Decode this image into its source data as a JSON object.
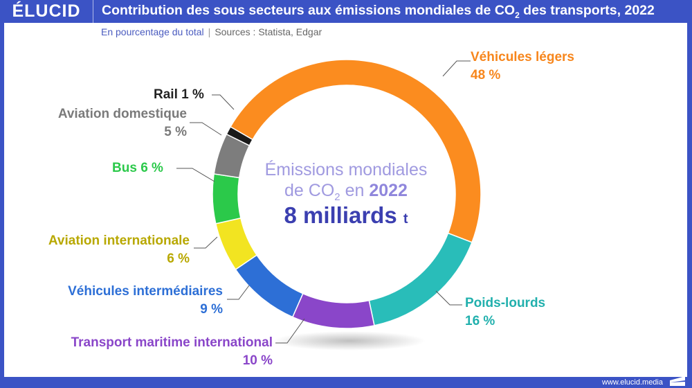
{
  "header": {
    "logo": "ÉLUCID",
    "title_pre": "Contribution des sous secteurs aux émissions mondiales de CO",
    "title_sub": "2",
    "title_post": " des transports, 2022"
  },
  "subtitle": {
    "unit": "En pourcentage du total",
    "separator": "|",
    "sources": "Sources : Statista, Edgar"
  },
  "center": {
    "line1": "Émissions mondiales",
    "line2_pre": "de CO",
    "line2_sub": "2",
    "line2_mid": " en ",
    "line2_year": "2022",
    "value": "8 milliards",
    "unit": "t"
  },
  "footer": {
    "url": "www.elucid.media"
  },
  "chart_data": {
    "type": "pie",
    "donut": true,
    "slices": [
      {
        "name": "Véhicules légers",
        "value": 48,
        "label": "48 %",
        "color": "#fb8c1f"
      },
      {
        "name": "Poids-lourds",
        "value": 16,
        "label": "16 %",
        "color": "#29bdb9"
      },
      {
        "name": "Transport maritime international",
        "value": 10,
        "label": "10 %",
        "color": "#8a46c9"
      },
      {
        "name": "Véhicules intermédiaires",
        "value": 9,
        "label": "9 %",
        "color": "#2d6fd6"
      },
      {
        "name": "Aviation internationale",
        "value": 6,
        "label": "6 %",
        "color": "#f2e421"
      },
      {
        "name": "Bus",
        "value": 6,
        "label": "6 %",
        "color": "#2bc94a"
      },
      {
        "name": "Aviation domestique",
        "value": 5,
        "label": "5 %",
        "color": "#7d7d7d"
      },
      {
        "name": "Rail",
        "value": 1,
        "label": "1 %",
        "color": "#1a1a1a"
      }
    ],
    "label_colors": [
      "#f7861c",
      "#21b0ad",
      "#8a46c9",
      "#2d6fd6",
      "#b8a800",
      "#2bc94a",
      "#7a7a7a",
      "#222222"
    ]
  }
}
